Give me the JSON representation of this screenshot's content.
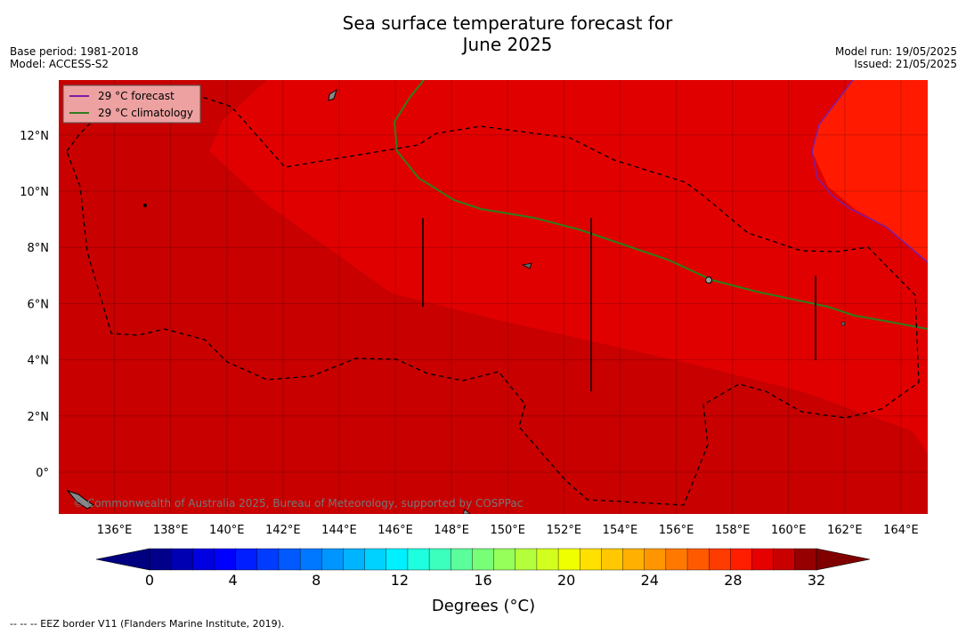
{
  "title_line1": "Sea surface temperature forecast for",
  "title_line2": "June 2025",
  "meta": {
    "base_period": "Base period: 1981-2018",
    "model": "Model: ACCESS-S2",
    "model_run": "Model run: 19/05/2025",
    "issued": "Issued: 21/05/2025"
  },
  "legend": {
    "forecast_label": "29 °C  forecast",
    "forecast_color": "#7b1fa2",
    "climatology_label": "29 °C  climatology",
    "climatology_color": "#2e7d1e"
  },
  "copyright": "© Commonwealth of Australia 2025, Bureau of Meteorology, supported by COSPPac",
  "lat_labels": [
    "12°N",
    "10°N",
    "8°N",
    "6°N",
    "4°N",
    "2°N",
    "0°"
  ],
  "lat_values": [
    12,
    10,
    8,
    6,
    4,
    2,
    0
  ],
  "lon_labels": [
    "136°E",
    "138°E",
    "140°E",
    "142°E",
    "144°E",
    "146°E",
    "148°E",
    "150°E",
    "152°E",
    "154°E",
    "156°E",
    "158°E",
    "160°E",
    "162°E",
    "164°E"
  ],
  "lon_values": [
    136,
    138,
    140,
    142,
    144,
    146,
    148,
    150,
    152,
    154,
    156,
    158,
    160,
    162,
    164
  ],
  "map_colors": {
    "t30_31": "#c80000",
    "t29_30": "#e10000",
    "t28_29": "#ff1a00"
  },
  "colorbar": {
    "ticks": [
      "0",
      "4",
      "8",
      "12",
      "16",
      "20",
      "24",
      "28",
      "32"
    ],
    "tick_values": [
      0,
      4,
      8,
      12,
      16,
      20,
      24,
      28,
      32
    ],
    "label": "Degrees (°C)",
    "colors": [
      "#00008b",
      "#0000b3",
      "#0000e0",
      "#0000ff",
      "#001eff",
      "#003cff",
      "#005aff",
      "#0078ff",
      "#0096ff",
      "#00b4ff",
      "#00d2ff",
      "#00f0ff",
      "#1effe0",
      "#3cffbe",
      "#5aff9b",
      "#78ff78",
      "#96ff5a",
      "#b4ff3c",
      "#d2ff1e",
      "#f0ff00",
      "#ffe000",
      "#ffc800",
      "#ffb000",
      "#ff9600",
      "#ff7800",
      "#ff5a00",
      "#ff3c00",
      "#ff1e00",
      "#e60000",
      "#c80000",
      "#960000"
    ],
    "under_color": "#000080",
    "over_color": "#800000"
  },
  "footer": "--  --  -- EEZ border V11 (Flanders Marine Institute, 2019)."
}
